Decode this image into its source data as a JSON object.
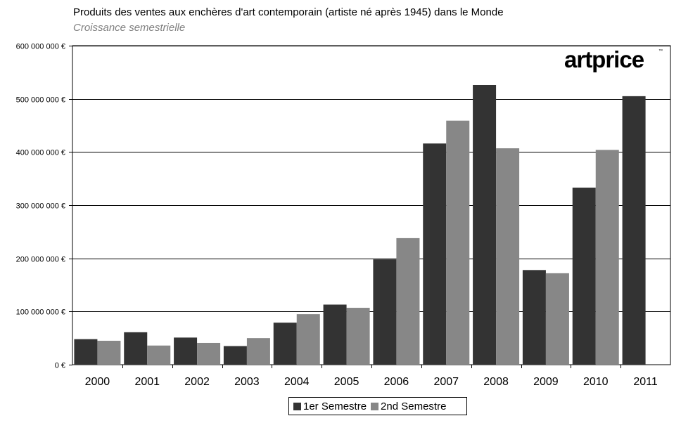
{
  "chart_data": {
    "type": "bar",
    "title": "Produits des ventes aux enchères d'art contemporain (artiste né après 1945) dans le Monde",
    "subtitle": "Croissance semestrielle",
    "categories": [
      "2000",
      "2001",
      "2002",
      "2003",
      "2004",
      "2005",
      "2006",
      "2007",
      "2008",
      "2009",
      "2010",
      "2011"
    ],
    "series": [
      {
        "name": "1er Semestre",
        "color": "#333333",
        "values": [
          48000000,
          61000000,
          51000000,
          35000000,
          79000000,
          113000000,
          198000000,
          416000000,
          526000000,
          178000000,
          333000000,
          505000000
        ]
      },
      {
        "name": "2nd Semestre",
        "color": "#878787",
        "values": [
          45000000,
          36000000,
          41000000,
          50000000,
          95000000,
          107000000,
          238000000,
          459000000,
          407000000,
          172000000,
          404000000,
          null
        ]
      }
    ],
    "ylim": [
      0,
      600000000
    ],
    "y_ticks": [
      "0 €",
      "100 000 000 €",
      "200 000 000 €",
      "300 000 000 €",
      "400 000 000 €",
      "500 000 000 €",
      "600 000 000 €"
    ],
    "y_tick_values": [
      0,
      100000000,
      200000000,
      300000000,
      400000000,
      500000000,
      600000000
    ],
    "grid": true,
    "legend_position": "bottom"
  },
  "logo": {
    "text": "artprice",
    "tm": "™"
  }
}
